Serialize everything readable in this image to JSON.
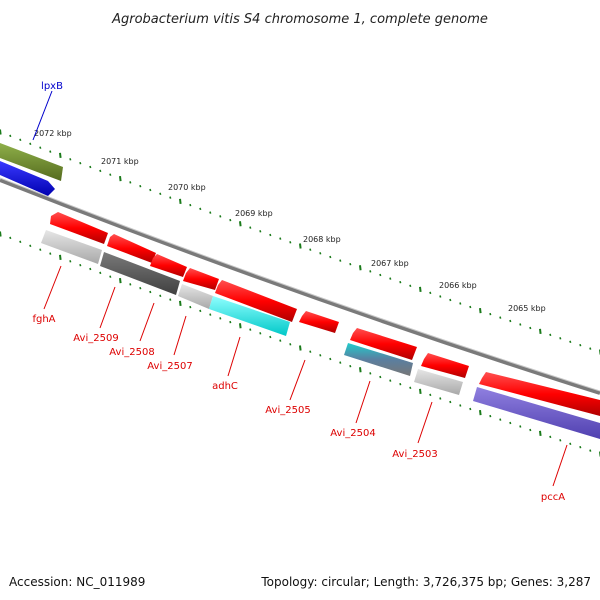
{
  "title": "Agrobacterium vitis S4 chromosome 1, complete genome",
  "accession": "Accession: NC_011989",
  "topology": "Topology: circular; Length: 3,726,375 bp; Genes: 3,287",
  "ruler_labels": [
    "2072 kbp",
    "2071 kbp",
    "2070 kbp",
    "2069 kbp",
    "2068 kbp",
    "2067 kbp",
    "2066 kbp",
    "2065 kbp"
  ],
  "gene_labels": [
    "lpxB",
    "fghA",
    "Avi_2509",
    "Avi_2508",
    "Avi_2507",
    "adhC",
    "Avi_2505",
    "Avi_2504",
    "Avi_2503",
    "pccA"
  ],
  "colors": {
    "forward_cds": "#ff0000",
    "backbone": "#888888",
    "tick_green": "#1a7a1a",
    "label_red": "#dd0000",
    "label_blue": "#0000cc",
    "olive": "#6b8e23",
    "blue": "#0000ff",
    "cyan": "#00ffff",
    "dark_gray": "#555555",
    "light_gray": "#c8c8c8",
    "slate_blue": "#6a5acd"
  }
}
